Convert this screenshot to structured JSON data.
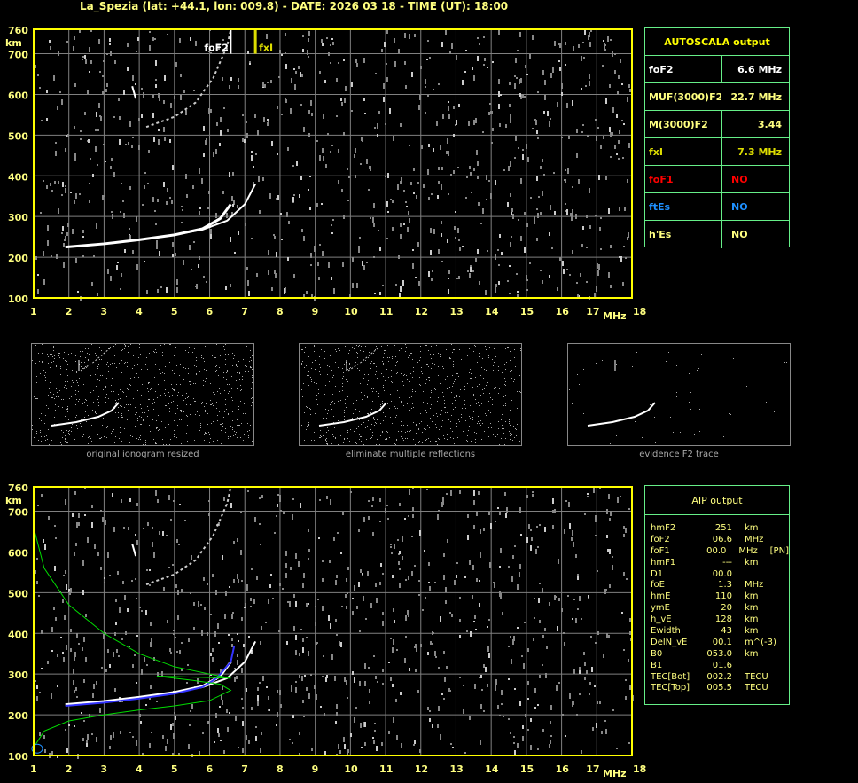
{
  "title": "La_Spezia (lat: +44.1, lon: 009.8) - DATE: 2026 03 18 - TIME (UT): 18:00",
  "colors": {
    "frame": "#ffff00",
    "grid": "#808080",
    "label": "#ffff80",
    "table_border": "#66ee88",
    "o_trace": "#ffffff",
    "x_trace": "#ffffff",
    "aip_fit": "#3333ff",
    "profile": "#00dd00",
    "foF1": "#ff0000",
    "ftEs": "#1e90ff",
    "fxI": "#dddd00"
  },
  "chart_data": [
    {
      "type": "scatter",
      "title": "",
      "xlabel": "MHz",
      "ylabel": "km",
      "xlim": [
        1,
        18
      ],
      "ylim": [
        100,
        760
      ],
      "xticks": [
        "1",
        "2",
        "3",
        "4",
        "5",
        "6",
        "7",
        "8",
        "9",
        "10",
        "11",
        "12",
        "13",
        "14",
        "15",
        "16",
        "17",
        "18"
      ],
      "yticks": [
        "100",
        "200",
        "300",
        "400",
        "500",
        "600",
        "700",
        "760"
      ],
      "grid": true,
      "markers": [
        {
          "label": "foF2",
          "x": 6.6
        },
        {
          "label": "fxI",
          "x": 7.3
        }
      ],
      "series": [
        {
          "x": [
            1.9,
            3,
            4,
            5,
            5.8,
            6.3,
            6.6
          ],
          "y": [
            225,
            233,
            243,
            255,
            270,
            295,
            330
          ]
        },
        {
          "x": [
            4.8,
            5.8,
            6.5,
            7,
            7.3
          ],
          "y": [
            252,
            268,
            290,
            330,
            380
          ]
        }
      ]
    },
    {
      "type": "scatter",
      "title": "",
      "xlabel": "MHz",
      "ylabel": "km",
      "xlim": [
        1,
        18
      ],
      "ylim": [
        100,
        760
      ],
      "xticks": [
        "1",
        "2",
        "3",
        "4",
        "5",
        "6",
        "7",
        "8",
        "9",
        "10",
        "11",
        "12",
        "13",
        "14",
        "15",
        "16",
        "17",
        "18"
      ],
      "yticks": [
        "100",
        "200",
        "300",
        "400",
        "500",
        "600",
        "700",
        "760"
      ],
      "grid": true
    }
  ],
  "autoscala": {
    "title": "AUTOSCALA output",
    "rows": [
      {
        "k": "foF2",
        "v": "6.6 MHz",
        "color": "#ffffff"
      },
      {
        "k": "MUF(3000)F2",
        "v": "22.7 MHz",
        "color": "#ffff80"
      },
      {
        "k": "M(3000)F2",
        "v": "3.44",
        "color": "#ffff80"
      },
      {
        "k": "fxI",
        "v": "7.3 MHz",
        "color": "#dddd00"
      },
      {
        "k": "foF1",
        "v": "NO",
        "color": "#ff0000"
      },
      {
        "k": "ftEs",
        "v": "NO",
        "color": "#1e90ff"
      },
      {
        "k": "h'Es",
        "v": "NO",
        "color": "#ffff80"
      }
    ]
  },
  "aip": {
    "title": "AIP output",
    "rows": [
      [
        "hmF2",
        "251",
        "km",
        ""
      ],
      [
        "foF2",
        "06.6",
        "MHz",
        ""
      ],
      [
        "foF1",
        "00.0",
        "MHz",
        "[PN]"
      ],
      [
        "hmF1",
        "---",
        "km",
        ""
      ],
      [
        "D1",
        "00.0",
        "",
        ""
      ],
      [
        "foE",
        "1.3",
        "MHz",
        ""
      ],
      [
        "hmE",
        "110",
        "km",
        ""
      ],
      [
        "ymE",
        "20",
        "km",
        ""
      ],
      [
        "h_vE",
        "128",
        "km",
        ""
      ],
      [
        "Ewidth",
        "43",
        "km",
        ""
      ],
      [
        "DelN_vE",
        "00.1",
        "m^(-3)",
        ""
      ],
      [
        "B0",
        "053.0",
        "km",
        ""
      ],
      [
        "B1",
        "01.6",
        "",
        ""
      ],
      [
        "TEC[Bot]",
        "002.2",
        "TECU",
        ""
      ],
      [
        "TEC[Top]",
        "005.5",
        "TECU",
        ""
      ]
    ]
  },
  "thumbnails": [
    "original ionogram resized",
    "eliminate multiple reflections",
    "evidence F2 trace"
  ]
}
